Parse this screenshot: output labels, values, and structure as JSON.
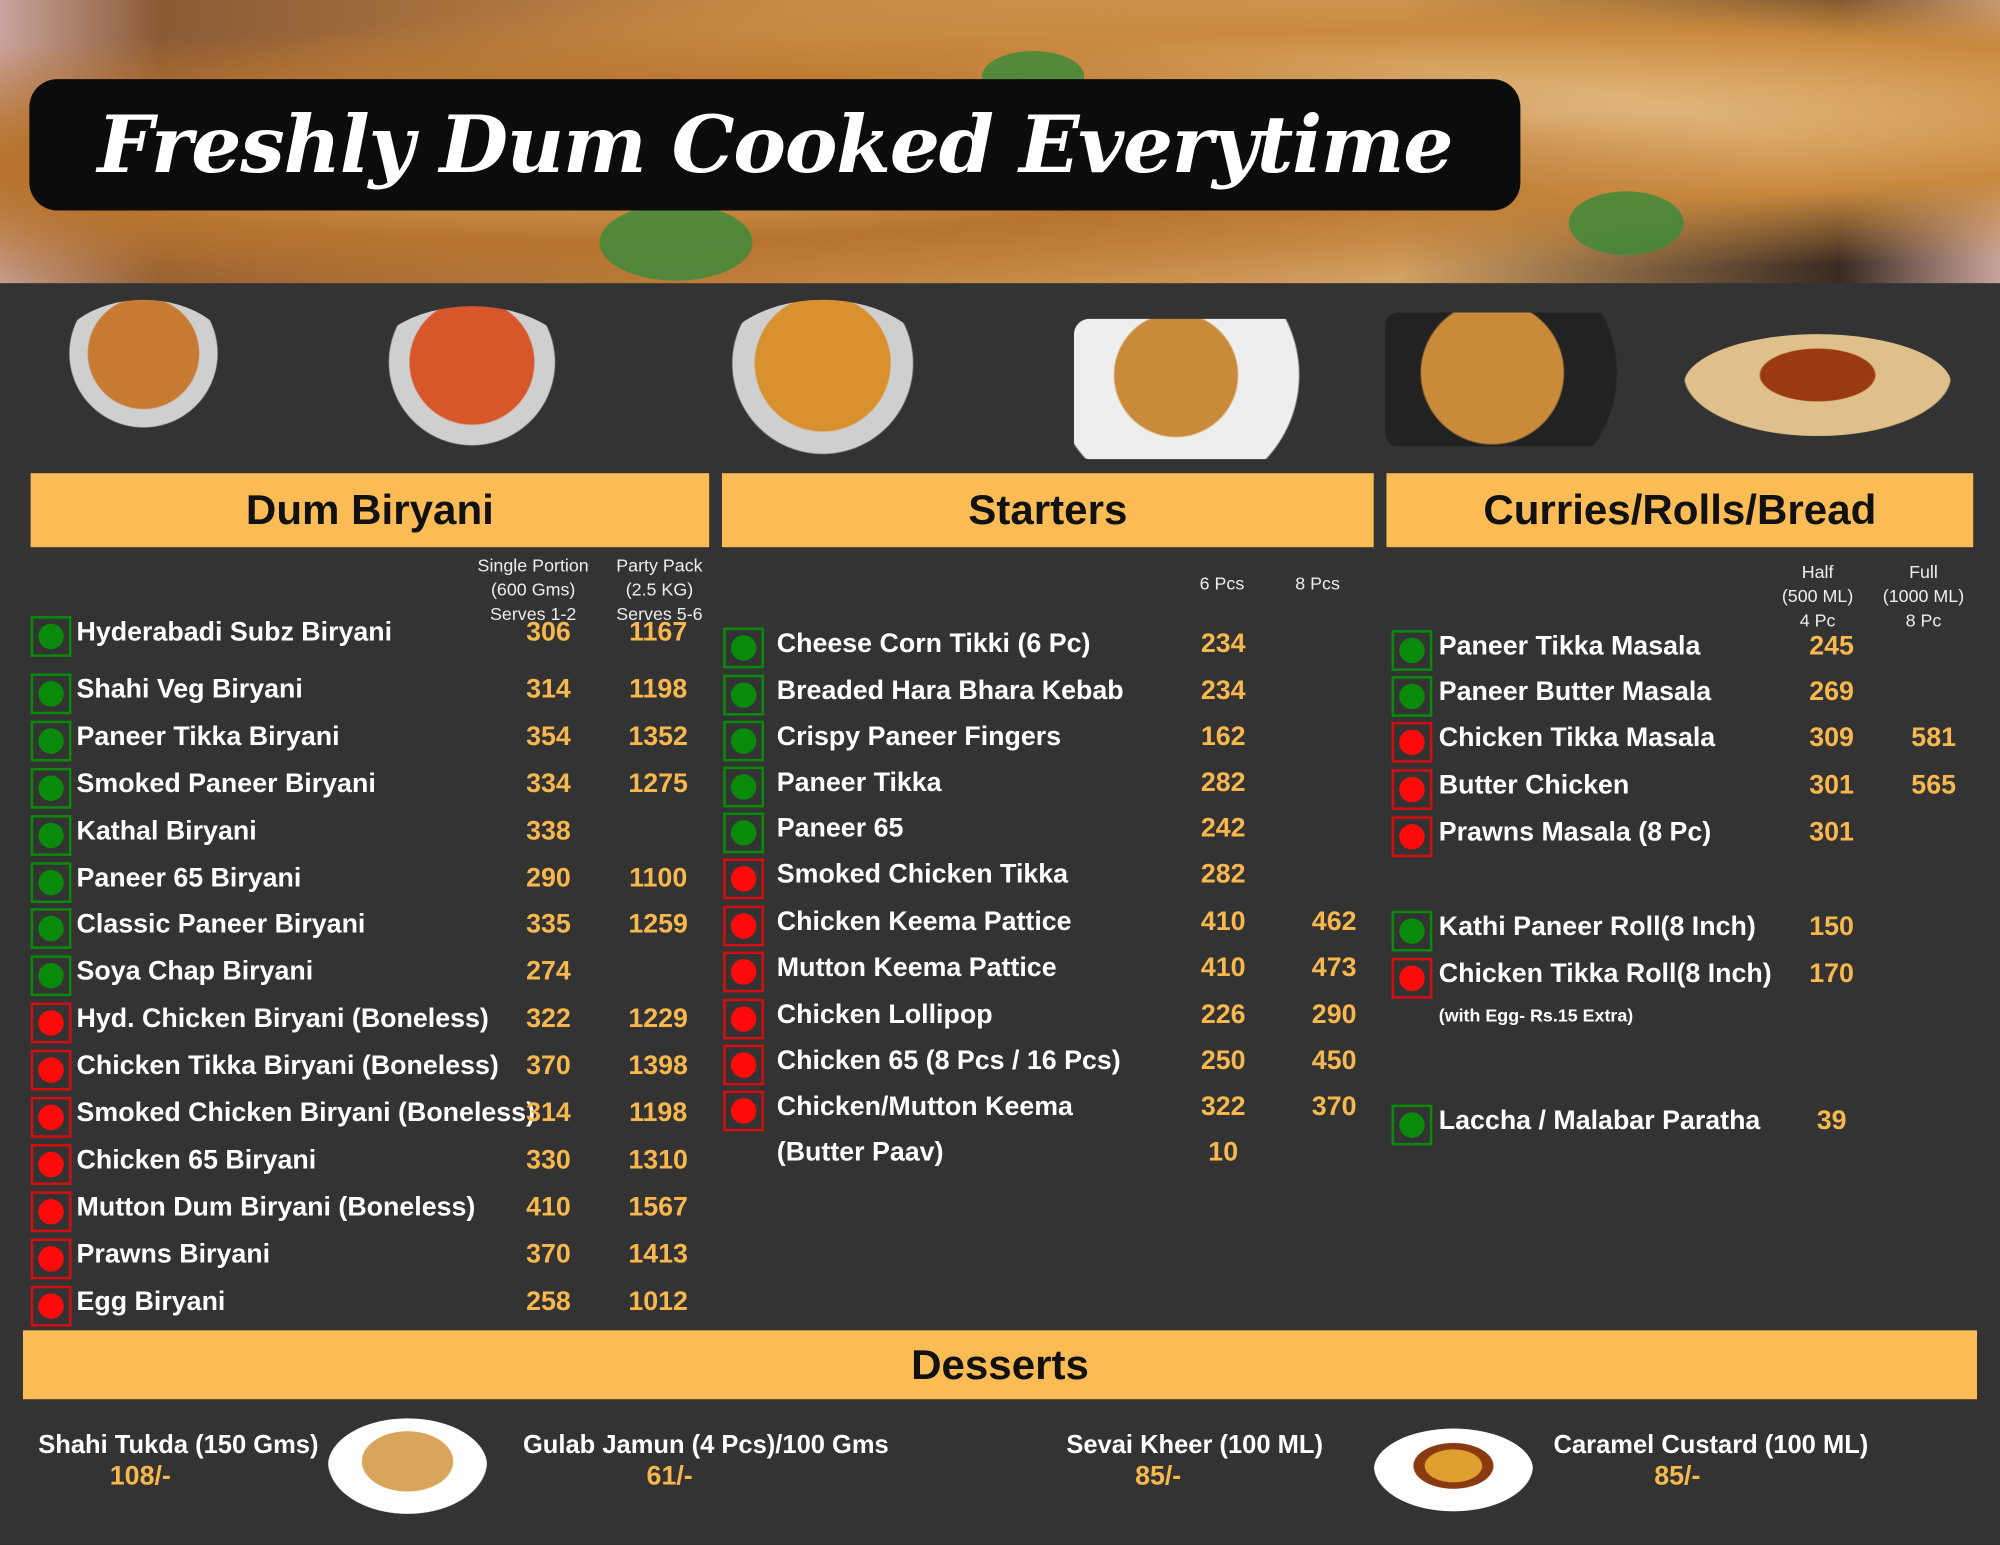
{
  "title": "Freshly Dum Cooked Everytime",
  "colors": {
    "background": "#333333",
    "accent": "#fcbc55",
    "price": "#f8b84e",
    "veg": "#0a8a0a",
    "nonveg": "#ff0a0a"
  },
  "sections": {
    "biryani": {
      "heading": "Dum Biryani",
      "columns": [
        [
          "Single Portion",
          "(600 Gms)",
          "Serves 1-2"
        ],
        [
          "Party Pack",
          "(2.5 KG)",
          "Serves 5-6"
        ]
      ],
      "items": [
        {
          "name": "Hyderabadi Subz Biryani",
          "type": "veg",
          "prices": [
            "306",
            "1167"
          ]
        },
        {
          "name": "Shahi Veg  Biryani",
          "type": "veg",
          "prices": [
            "314",
            "1198"
          ]
        },
        {
          "name": "Paneer Tikka Biryani",
          "type": "veg",
          "prices": [
            "354",
            "1352"
          ]
        },
        {
          "name": "Smoked Paneer  Biryani",
          "type": "veg",
          "prices": [
            "334",
            "1275"
          ]
        },
        {
          "name": "Kathal Biryani",
          "type": "veg",
          "prices": [
            "338",
            ""
          ]
        },
        {
          "name": "Paneer 65 Biryani",
          "type": "veg",
          "prices": [
            "290",
            "1100"
          ]
        },
        {
          "name": "Classic Paneer  Biryani",
          "type": "veg",
          "prices": [
            "335",
            "1259"
          ]
        },
        {
          "name": "Soya Chap Biryani",
          "type": "veg",
          "prices": [
            "274",
            ""
          ]
        },
        {
          "name": "Hyd. Chicken Biryani (Boneless)",
          "type": "nonveg",
          "prices": [
            "322",
            "1229"
          ]
        },
        {
          "name": "Chicken Tikka Biryani (Boneless)",
          "type": "nonveg",
          "prices": [
            "370",
            "1398"
          ]
        },
        {
          "name": "Smoked Chicken Biryani (Boneless)",
          "type": "nonveg",
          "prices": [
            "314",
            "1198"
          ]
        },
        {
          "name": "Chicken 65 Biryani",
          "type": "nonveg",
          "prices": [
            "330",
            "1310"
          ]
        },
        {
          "name": "Mutton Dum Biryani (Boneless)",
          "type": "nonveg",
          "prices": [
            "410",
            "1567"
          ]
        },
        {
          "name": "Prawns Biryani",
          "type": "nonveg",
          "prices": [
            "370",
            "1413"
          ]
        },
        {
          "name": "Egg Biryani",
          "type": "nonveg",
          "prices": [
            "258",
            "1012"
          ]
        }
      ]
    },
    "starters": {
      "heading": "Starters",
      "columns": [
        [
          "6 Pcs"
        ],
        [
          "8 Pcs"
        ]
      ],
      "items": [
        {
          "name": "Cheese Corn Tikki (6 Pc)",
          "type": "veg",
          "prices": [
            "234",
            ""
          ]
        },
        {
          "name": "Breaded Hara Bhara Kebab",
          "type": "veg",
          "prices": [
            "234",
            ""
          ]
        },
        {
          "name": "Crispy Paneer Fingers",
          "type": "veg",
          "prices": [
            "162",
            ""
          ]
        },
        {
          "name": "Paneer Tikka",
          "type": "veg",
          "prices": [
            "282",
            ""
          ]
        },
        {
          "name": "Paneer 65",
          "type": "veg",
          "prices": [
            "242",
            ""
          ]
        },
        {
          "name": "Smoked Chicken Tikka",
          "type": "nonveg",
          "prices": [
            "282",
            ""
          ]
        },
        {
          "name": "Chicken Keema Pattice",
          "type": "nonveg",
          "prices": [
            "410",
            "462"
          ]
        },
        {
          "name": "Mutton Keema Pattice",
          "type": "nonveg",
          "prices": [
            "410",
            "473"
          ]
        },
        {
          "name": "Chicken Lollipop",
          "type": "nonveg",
          "prices": [
            "226",
            "290"
          ]
        },
        {
          "name": "Chicken 65 (8 Pcs / 16 Pcs)",
          "type": "nonveg",
          "prices": [
            "250",
            "450"
          ]
        },
        {
          "name": "Chicken/Mutton Keema",
          "type": "nonveg",
          "prices": [
            "322",
            "370"
          ]
        },
        {
          "name": "(Butter Paav)",
          "type": "",
          "prices": [
            "10",
            ""
          ]
        }
      ]
    },
    "curries": {
      "heading": "Curries/Rolls/Bread",
      "columns": [
        [
          "Half",
          "(500 ML)",
          "4 Pc"
        ],
        [
          "Full",
          "(1000 ML)",
          "8 Pc"
        ]
      ],
      "items": [
        {
          "name": "Paneer Tikka Masala",
          "type": "veg",
          "prices": [
            "245",
            ""
          ]
        },
        {
          "name": "Paneer Butter Masala",
          "type": "veg",
          "prices": [
            "269",
            ""
          ]
        },
        {
          "name": "Chicken Tikka Masala",
          "type": "nonveg",
          "prices": [
            "309",
            "581"
          ]
        },
        {
          "name": "Butter Chicken",
          "type": "nonveg",
          "prices": [
            "301",
            "565"
          ]
        },
        {
          "name": "Prawns Masala (8 Pc)",
          "type": "nonveg",
          "prices": [
            "301",
            ""
          ]
        },
        {
          "name": "Kathi Paneer Roll(8 Inch)",
          "type": "veg",
          "prices": [
            "150",
            ""
          ]
        },
        {
          "name": "Chicken Tikka Roll(8 Inch)",
          "type": "nonveg",
          "prices": [
            "170",
            ""
          ]
        },
        {
          "name": "Laccha / Malabar Paratha",
          "type": "veg",
          "prices": [
            "39",
            ""
          ]
        }
      ],
      "note": "(with Egg- Rs.15 Extra)"
    },
    "desserts": {
      "heading": "Desserts",
      "items": [
        {
          "name": "Shahi Tukda (150 Gms)",
          "price": "108/-"
        },
        {
          "name": "Gulab Jamun (4 Pcs)/100 Gms",
          "price": "61/-"
        },
        {
          "name": "Sevai Kheer (100 ML)",
          "price": "85/-"
        },
        {
          "name": "Caramel Custard (100 ML)",
          "price": "85/-"
        }
      ]
    }
  }
}
